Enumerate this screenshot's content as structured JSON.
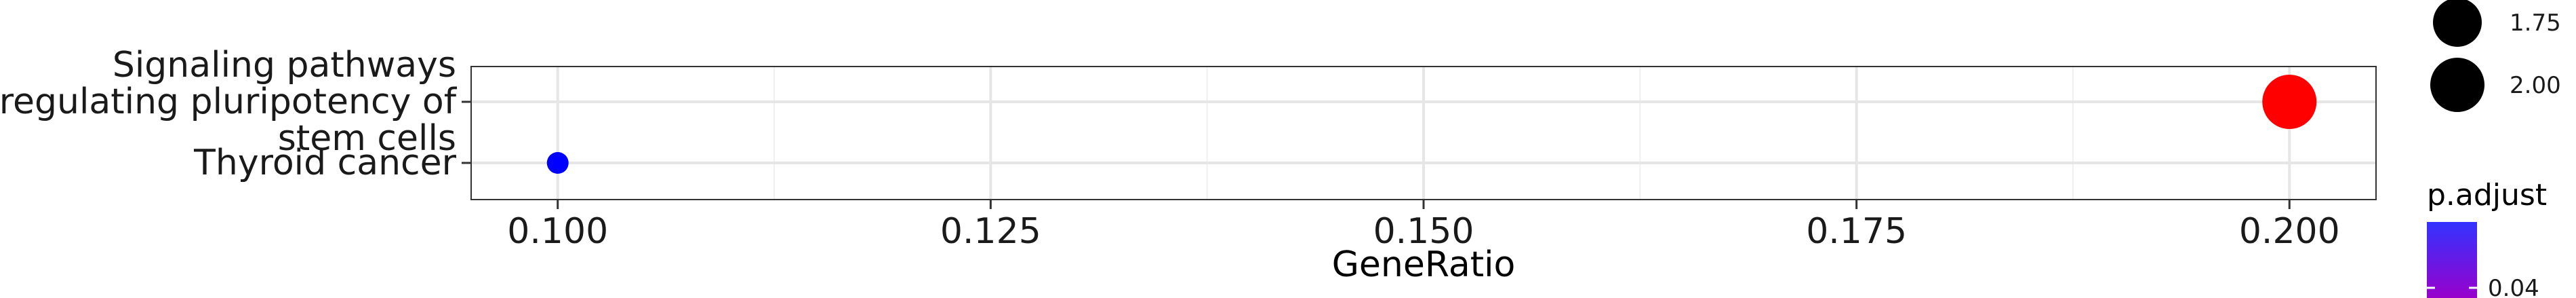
{
  "chart_data": {
    "type": "scatter",
    "xlabel": "GeneRatio",
    "ylabel": "",
    "xlim": [
      0.095,
      0.205
    ],
    "x_ticks": [
      "0.100",
      "0.125",
      "0.150",
      "0.175",
      "0.200"
    ],
    "x_tick_values": [
      0.1,
      0.125,
      0.15,
      0.175,
      0.2
    ],
    "categories": [
      "Signaling pathways regulating pluripotency of stem cells",
      "Thyroid cancer"
    ],
    "category_lines": [
      [
        "Signaling pathways",
        "regulating pluripotency of",
        "stem cells"
      ],
      [
        "Thyroid cancer"
      ]
    ],
    "points": [
      {
        "term": "Signaling pathways regulating pluripotency of stem cells",
        "x": 0.2,
        "count": 2,
        "color": "#ff0000"
      },
      {
        "term": "Thyroid cancer",
        "x": 0.1,
        "count": 1,
        "color": "#0000ff"
      }
    ],
    "grid": true,
    "legend": {
      "size_entries": [
        {
          "label": "1.75",
          "value": 1.75
        },
        {
          "label": "2.00",
          "value": 2.0
        }
      ],
      "color_title": "p.adjust",
      "color_labels": [
        "0.04"
      ],
      "color_gradient": [
        "#0000ff",
        "#ff0000"
      ],
      "placement": "right"
    }
  }
}
